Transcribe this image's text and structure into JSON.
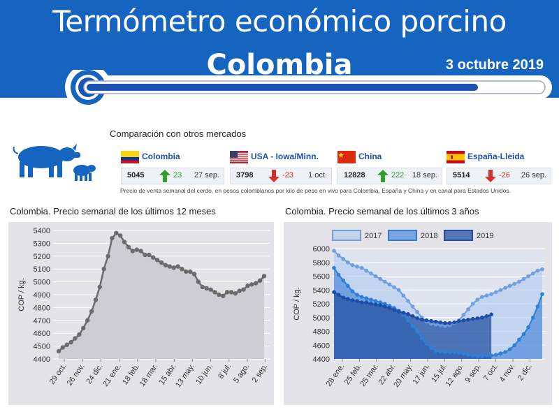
{
  "header": {
    "title": "Termómetro económico porcino",
    "subtitle": "Colombia",
    "date": "3 octubre 2019"
  },
  "comparison": {
    "title": "Comparación con otros mercados",
    "markets": [
      {
        "name": "Colombia",
        "price": "5045",
        "change": "23",
        "direction": "up",
        "date": "27 sep.",
        "flag": "colombia"
      },
      {
        "name": "USA - Iowa/Minn.",
        "price": "3798",
        "change": "-23",
        "direction": "down",
        "date": "1 oct.",
        "flag": "usa"
      },
      {
        "name": "China",
        "price": "12828",
        "change": "222",
        "direction": "up",
        "date": "18 sep.",
        "flag": "china"
      },
      {
        "name": "España-Lleida",
        "price": "5514",
        "change": "-26",
        "direction": "down",
        "date": "26 sep.",
        "flag": "spain"
      }
    ],
    "note": "Precio de venta semanal del cerdo, en pesos colombianos por kilo de peso en vivo para Colombia, España y China y en canal para Estados Unidos."
  },
  "colors": {
    "header": "#1565c0",
    "up": "#2e9e2e",
    "down": "#d32f2f",
    "line1": "#666666"
  },
  "chart_data": [
    {
      "type": "area",
      "title": "Colombia. Precio semanal de los últimos 12 meses",
      "ylabel": "COP / kg.",
      "ylim": [
        4400,
        5400
      ],
      "yticks": [
        4400,
        4500,
        4600,
        4700,
        4800,
        4900,
        5000,
        5100,
        5200,
        5300,
        5400
      ],
      "xticks": [
        "29 oct.",
        "26 nov.",
        "24 dic.",
        "21 ene.",
        "18 feb.",
        "18 mar.",
        "15 abr.",
        "13 may.",
        "10 jun.",
        "8 jul.",
        "5 ago.",
        "2 sep."
      ],
      "values": [
        4460,
        4490,
        4510,
        4530,
        4560,
        4590,
        4640,
        4700,
        4770,
        4860,
        4960,
        5100,
        5200,
        5340,
        5380,
        5360,
        5310,
        5270,
        5240,
        5250,
        5240,
        5210,
        5210,
        5190,
        5170,
        5150,
        5130,
        5120,
        5110,
        5120,
        5100,
        5080,
        5080,
        5060,
        5000,
        4960,
        4950,
        4940,
        4920,
        4900,
        4890,
        4920,
        4920,
        4910,
        4930,
        4940,
        4970,
        4980,
        4990,
        5010,
        5045
      ]
    },
    {
      "type": "area",
      "title": "Colombia. Precio semanal de los últimos 3 años",
      "ylabel": "COP / kg.",
      "ylim": [
        4400,
        6000
      ],
      "yticks": [
        4400,
        4600,
        4800,
        5000,
        5200,
        5400,
        5600,
        5800,
        6000
      ],
      "xticks": [
        "28 ene.",
        "25 feb.",
        "25 mar.",
        "22 abr.",
        "20 may.",
        "17 jun.",
        "15 jul.",
        "12 ago.",
        "9 sep.",
        "7 oct.",
        "4 nov.",
        "2 dic."
      ],
      "series": [
        {
          "name": "2017",
          "values": [
            5970,
            5900,
            5850,
            5800,
            5760,
            5740,
            5720,
            5680,
            5640,
            5600,
            5560,
            5520,
            5480,
            5440,
            5400,
            5320,
            5240,
            5160,
            5080,
            5000,
            4940,
            4910,
            4900,
            4890,
            4880,
            4890,
            4920,
            4960,
            5040,
            5120,
            5200,
            5260,
            5300,
            5320,
            5340,
            5370,
            5400,
            5430,
            5460,
            5490,
            5520,
            5560,
            5600,
            5640,
            5680,
            5700
          ]
        },
        {
          "name": "2018",
          "values": [
            5720,
            5620,
            5540,
            5460,
            5380,
            5330,
            5300,
            5280,
            5260,
            5240,
            5220,
            5200,
            5170,
            5140,
            5100,
            5040,
            4960,
            4880,
            4800,
            4700,
            4620,
            4560,
            4520,
            4510,
            4500,
            4500,
            4500,
            4490,
            4480,
            4460,
            4450,
            4440,
            4440,
            4450,
            4450,
            4460,
            4480,
            4500,
            4540,
            4600,
            4680,
            4760,
            4860,
            5000,
            5160,
            5340
          ]
        },
        {
          "name": "2019",
          "values": [
            5370,
            5330,
            5290,
            5270,
            5250,
            5240,
            5220,
            5220,
            5200,
            5190,
            5180,
            5160,
            5140,
            5110,
            5090,
            5070,
            5050,
            5020,
            4990,
            4970,
            4960,
            4950,
            4940,
            4930,
            4920,
            4920,
            4930,
            4950,
            4960,
            4970,
            4980,
            4990,
            5000,
            5020,
            5045
          ]
        }
      ]
    }
  ]
}
